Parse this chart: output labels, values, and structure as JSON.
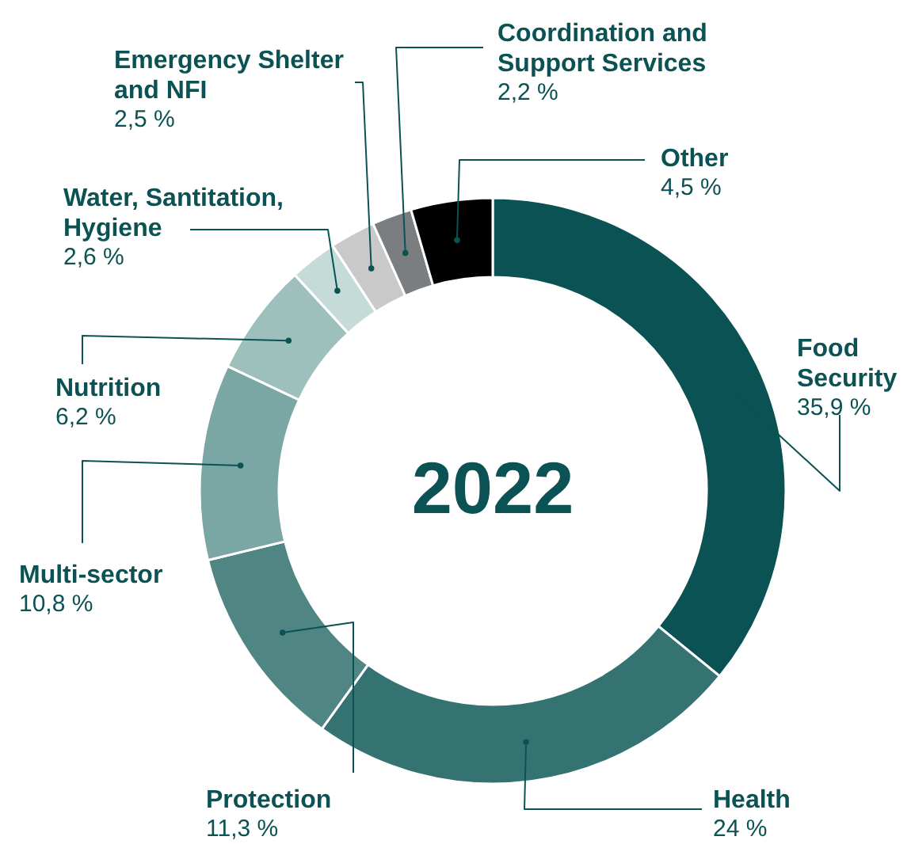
{
  "chart_data": {
    "type": "donut",
    "title": "2022",
    "categories": [
      "Food Security",
      "Health",
      "Protection",
      "Multi-sector",
      "Nutrition",
      "Water, Santitation, Hygiene",
      "Emergency Shelter and NFI",
      "Coordination and Support Services",
      "Other"
    ],
    "values": [
      35.9,
      24,
      11.3,
      10.8,
      6.2,
      2.6,
      2.5,
      2.2,
      4.5
    ],
    "colors": [
      "#0b5254",
      "#357373",
      "#4f8683",
      "#7aa6a3",
      "#9dc0bd",
      "#c5dbd8",
      "#c9c9c9",
      "#7b7e80",
      "#000000"
    ],
    "value_labels": [
      "35,9 %",
      "24 %",
      "11,3 %",
      "10,8 %",
      "6,2 %",
      "2,6 %",
      "2,5 %",
      "2,2 %",
      "4,5 %"
    ]
  }
}
